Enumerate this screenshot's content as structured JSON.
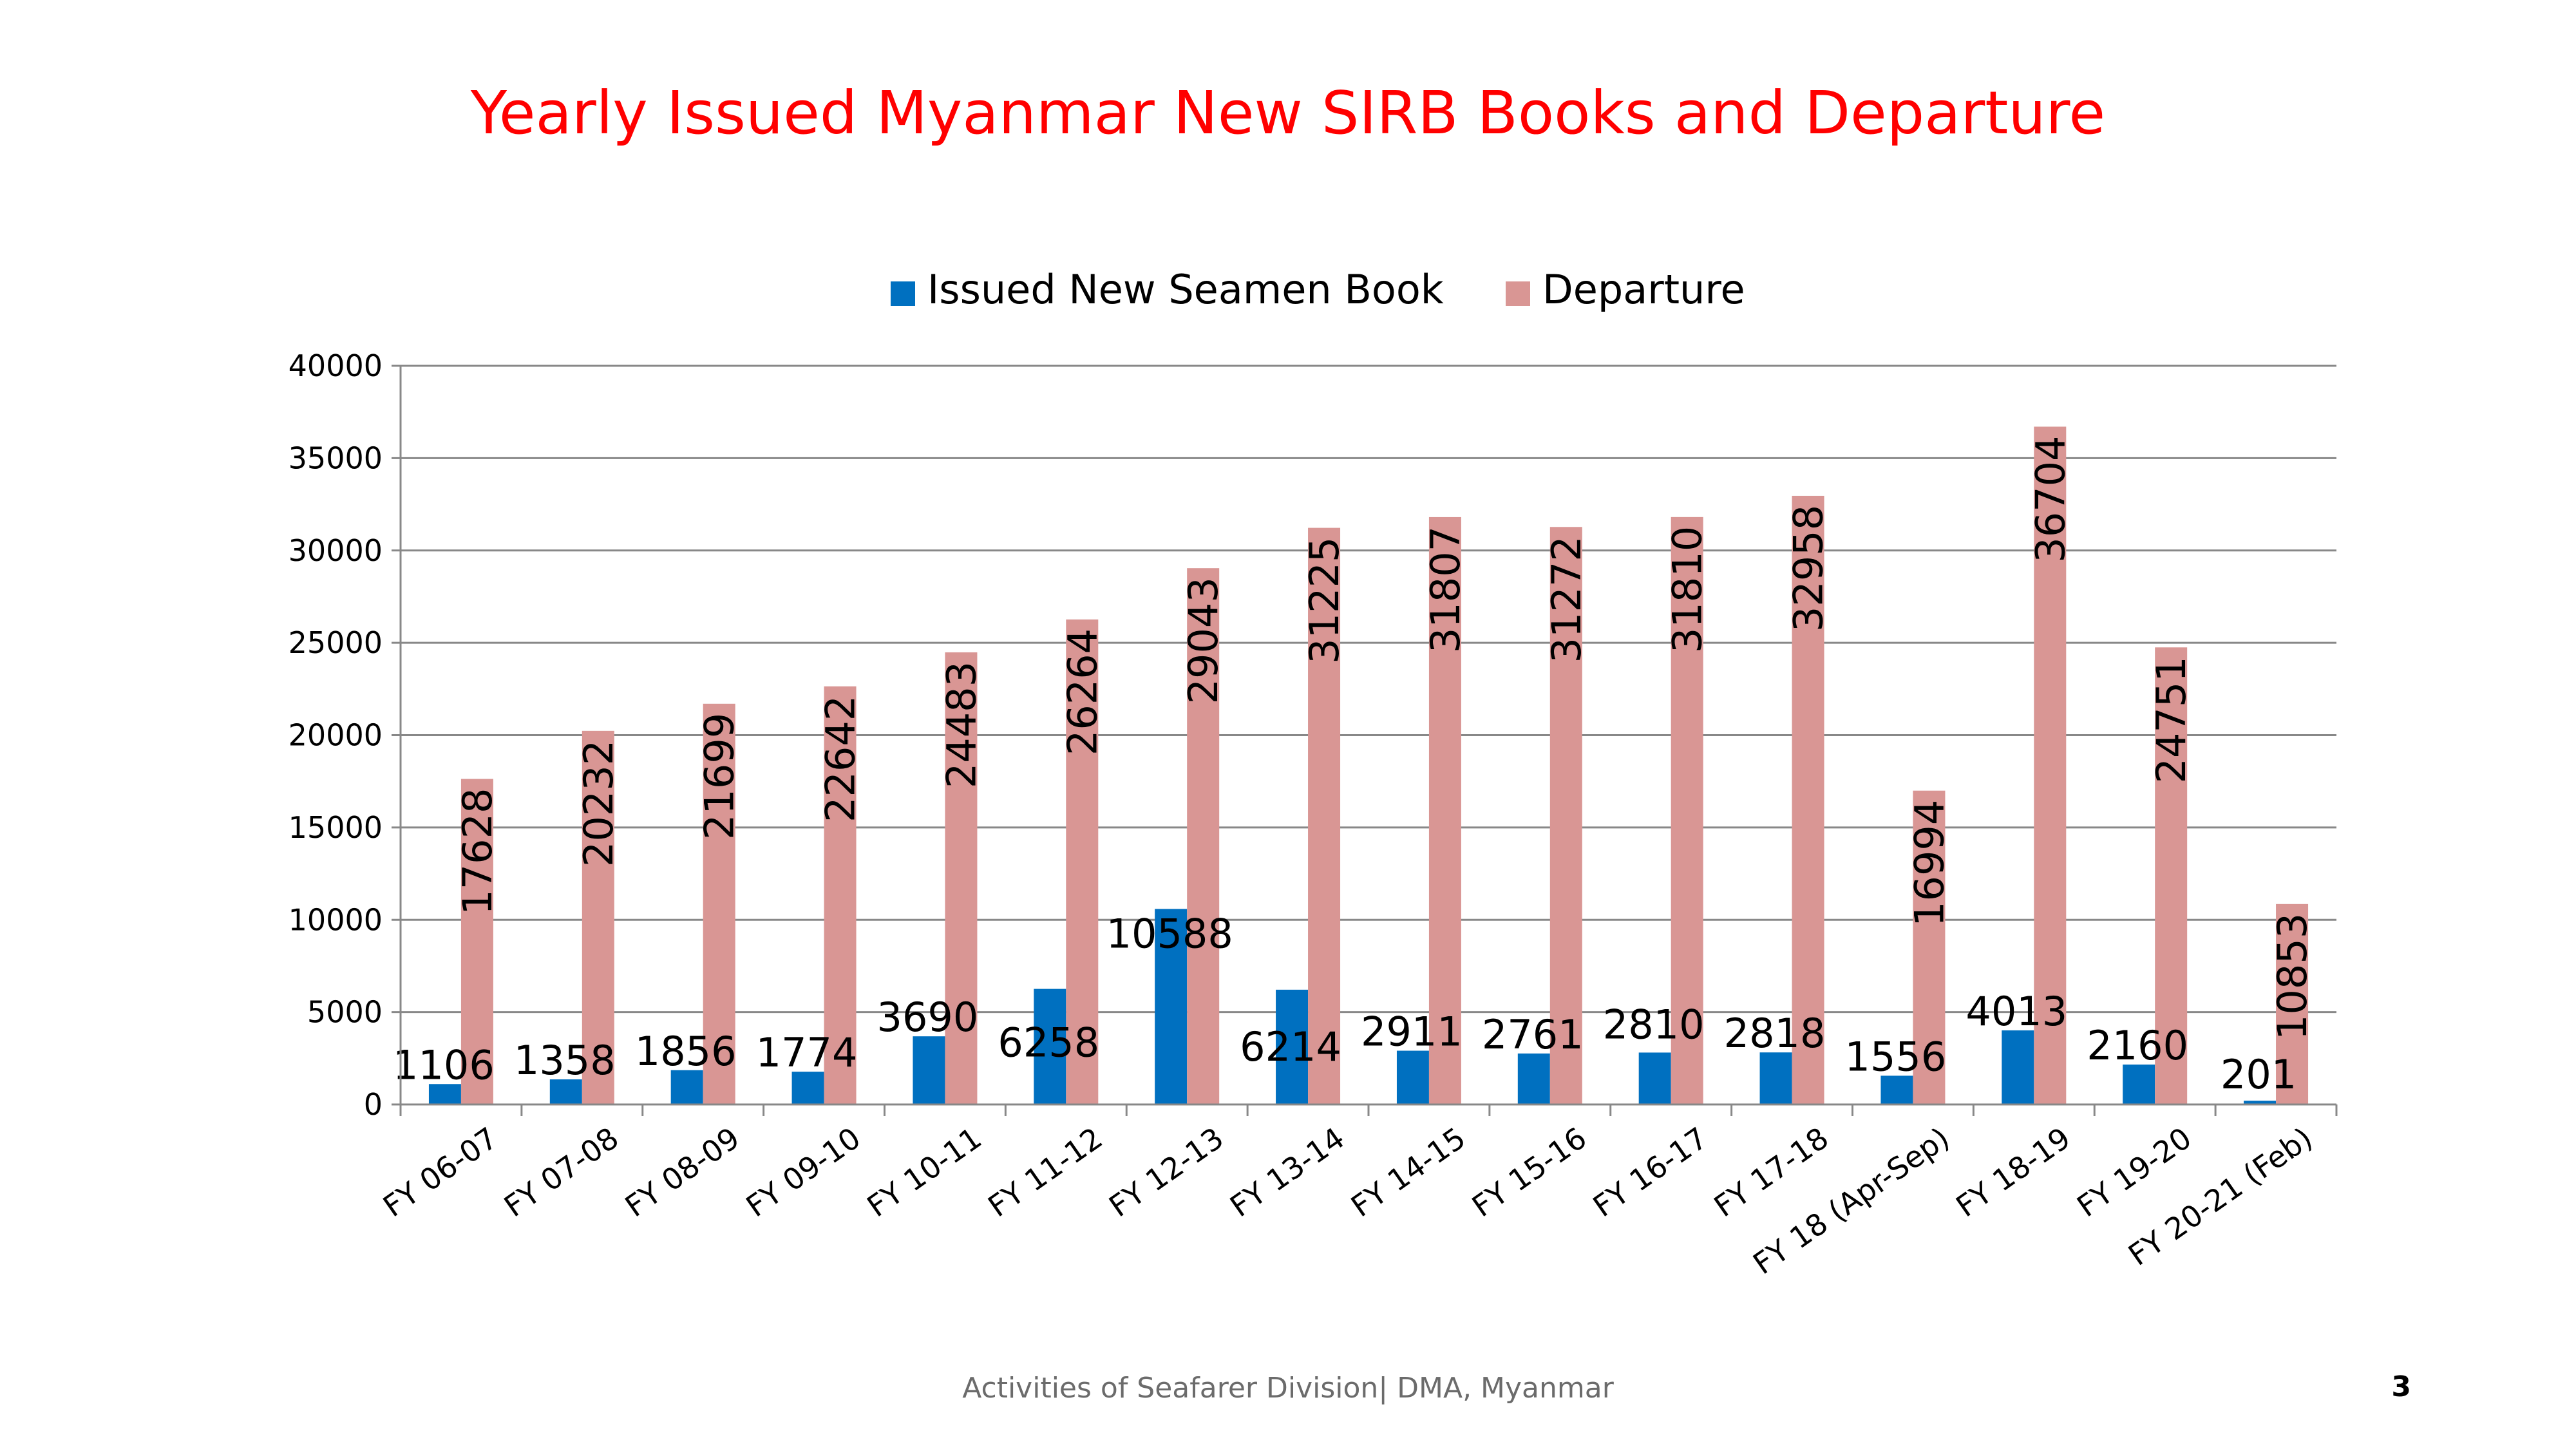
{
  "slide": {
    "footer": "Activities of Seafarer Division| DMA, Myanmar",
    "page_number": "3"
  },
  "colors": {
    "title": "#ff0000",
    "book": "#0070c0",
    "departure": "#d99694",
    "grid": "#888888",
    "text": "#000000"
  },
  "chart_data": {
    "type": "bar",
    "title": "Yearly Issued Myanmar New SIRB Books and Departure",
    "xlabel": "",
    "ylabel": "",
    "ylim": [
      0,
      40000
    ],
    "yticks": [
      0,
      5000,
      10000,
      15000,
      20000,
      25000,
      30000,
      35000,
      40000
    ],
    "grid": true,
    "legend_position": "top-center",
    "categories": [
      "FY 06-07",
      "FY 07-08",
      "FY 08-09",
      "FY 09-10",
      "FY 10-11",
      "FY 11-12",
      "FY 12-13",
      "FY 13-14",
      "FY 14-15",
      "FY 15-16",
      "FY 16-17",
      "FY 17-18",
      "FY 18 (Apr-Sep)",
      "FY 18-19",
      "FY 19-20",
      "FY 20-21 (Feb)"
    ],
    "series": [
      {
        "name": "Issued New Seamen Book",
        "values": [
          1106,
          1358,
          1856,
          1774,
          3690,
          6258,
          10588,
          6214,
          2911,
          2761,
          2810,
          2818,
          1556,
          4013,
          2160,
          201
        ]
      },
      {
        "name": "Departure",
        "values": [
          17628,
          20232,
          21699,
          22642,
          24483,
          26264,
          29043,
          31225,
          31807,
          31272,
          31810,
          32958,
          16994,
          36704,
          24751,
          10853
        ]
      }
    ]
  }
}
